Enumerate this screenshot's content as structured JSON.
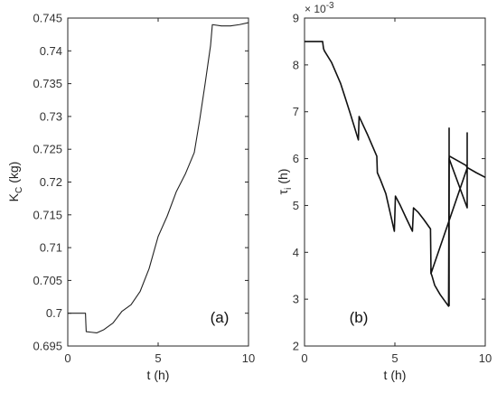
{
  "chart_data": [
    {
      "type": "line",
      "panel_label": "(a)",
      "xlabel": "t (h)",
      "ylabel": "K",
      "ylabel_sub": "C",
      "ylabel_unit": "(kg)",
      "xlim": [
        0,
        10
      ],
      "ylim": [
        0.695,
        0.745
      ],
      "xticks": [
        0,
        5,
        10
      ],
      "xtick_labels": [
        "0",
        "5",
        "10"
      ],
      "yticks": [
        0.695,
        0.7,
        0.705,
        0.71,
        0.715,
        0.72,
        0.725,
        0.73,
        0.735,
        0.74,
        0.745
      ],
      "ytick_labels": [
        "0.695",
        "0.7",
        "0.705",
        "0.71",
        "0.715",
        "0.72",
        "0.725",
        "0.73",
        "0.735",
        "0.74",
        "0.745"
      ],
      "grid": false,
      "series": [
        {
          "color": "#222222",
          "x": [
            0,
            0.98,
            1.0,
            1.02,
            1.3,
            1.6,
            2.0,
            2.5,
            3.0,
            3.5,
            4.0,
            4.5,
            5.0,
            5.5,
            6.0,
            6.5,
            7.0,
            7.3,
            7.6,
            7.9,
            8.0,
            8.5,
            9.0,
            9.5,
            10.0
          ],
          "y": [
            0.7,
            0.7,
            0.6985,
            0.6972,
            0.6971,
            0.697,
            0.6975,
            0.6985,
            0.7003,
            0.7013,
            0.7033,
            0.7068,
            0.7117,
            0.7148,
            0.7185,
            0.7212,
            0.7245,
            0.7295,
            0.735,
            0.7408,
            0.744,
            0.7438,
            0.7438,
            0.744,
            0.7443
          ]
        }
      ]
    },
    {
      "type": "line",
      "panel_label": "(b)",
      "xlabel": "t (h)",
      "ylabel": "τ",
      "ylabel_sub": "i",
      "ylabel_unit": "(h)",
      "y_exponent_text": "× 10",
      "y_exponent_power": "-3",
      "xlim": [
        0,
        10
      ],
      "ylim": [
        2,
        9
      ],
      "xticks": [
        0,
        5,
        10
      ],
      "xtick_labels": [
        "0",
        "5",
        "10"
      ],
      "yticks": [
        2,
        3,
        4,
        5,
        6,
        7,
        8,
        9
      ],
      "ytick_labels": [
        "2",
        "3",
        "4",
        "5",
        "6",
        "7",
        "8",
        "9"
      ],
      "grid": false,
      "series": [
        {
          "color": "#111111",
          "x": [
            0,
            1.0,
            1.05,
            1.1,
            1.5,
            2.0,
            2.5,
            2.98,
            3.02,
            3.2,
            3.5,
            4.0,
            4.03,
            4.2,
            4.5,
            4.97,
            5.03,
            5.3,
            5.6,
            5.97,
            6.03,
            6.3,
            6.6,
            6.97,
            7.0,
            7.05,
            7.2,
            7.5,
            7.97,
            8.0,
            8.03,
            8.5,
            8.95,
            9.0,
            9.05,
            9.5,
            10.0
          ],
          "y": [
            8.5,
            8.5,
            8.35,
            8.3,
            8.05,
            7.6,
            7.0,
            6.4,
            6.9,
            6.75,
            6.5,
            6.05,
            5.7,
            5.55,
            5.25,
            4.45,
            5.2,
            5.0,
            4.75,
            4.45,
            4.95,
            4.85,
            4.7,
            4.5,
            3.55,
            3.5,
            3.3,
            3.1,
            2.85,
            6.0,
            6.05,
            5.95,
            5.85,
            5.8,
            5.8,
            5.7,
            5.6
          ]
        },
        {
          "color": "#111111",
          "x": [
            8.0,
            8.0,
            8.0,
            9.0,
            9.0,
            9.0,
            7.0,
            7.0,
            7.0
          ],
          "y": [
            2.85,
            6.65,
            6.0,
            4.95,
            6.55,
            5.8,
            3.55,
            3.65,
            3.55
          ]
        }
      ]
    }
  ]
}
